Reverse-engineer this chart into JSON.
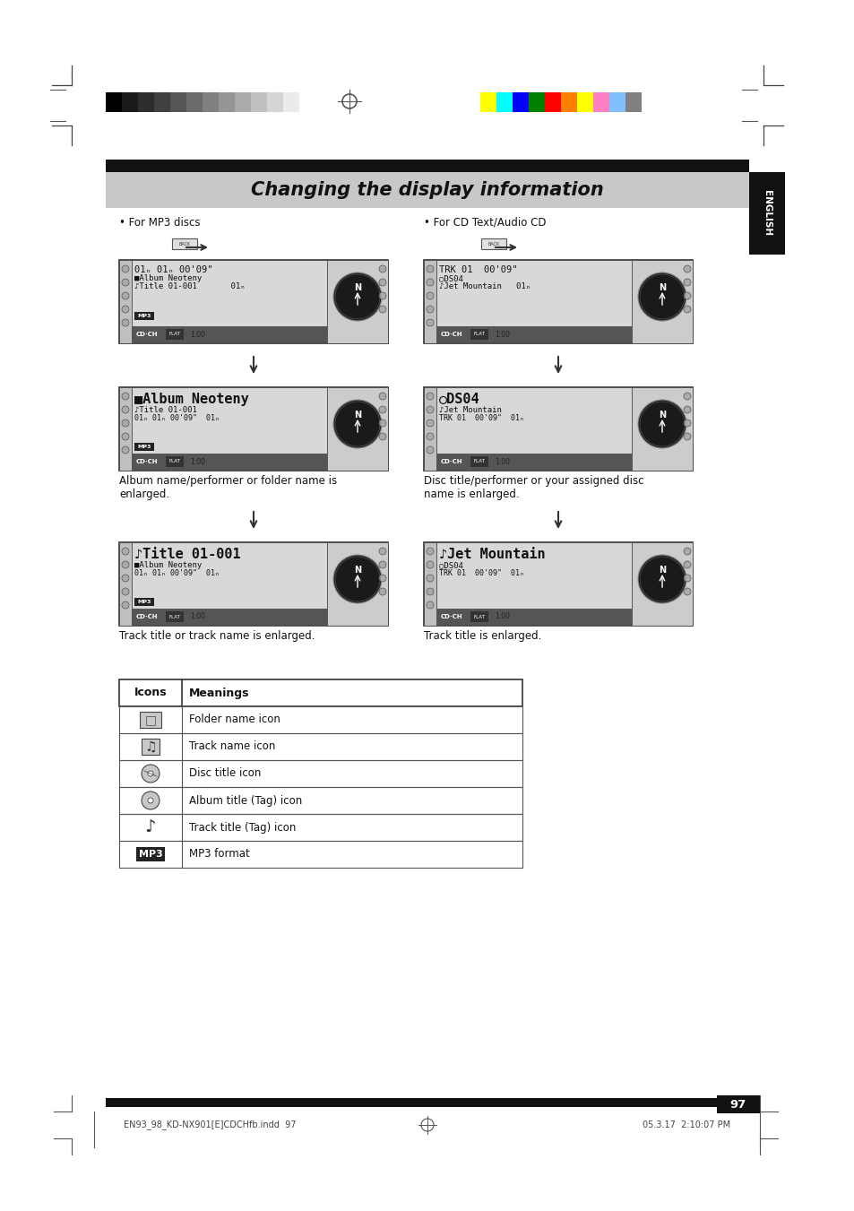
{
  "title": "Changing the display information",
  "page_number": "97",
  "tab_text": "ENGLISH",
  "section_left": "• For MP3 discs",
  "section_right": "• For CD Text/Audio CD",
  "caption_left_1": "Album name/performer or folder name is\nenlarged.",
  "caption_left_2": "Track title or track name is enlarged.",
  "caption_right_1": "Disc title/performer or your assigned disc\nname is enlarged.",
  "caption_right_2": "Track title is enlarged.",
  "footer_left": "EN93_98_KD-NX901[E]CDCHfb.indd  97",
  "footer_right": "05.3.17  2:10:07 PM",
  "table_headers": [
    "Icons",
    "Meanings"
  ],
  "table_rows": [
    [
      "folder_icon",
      "Folder name icon"
    ],
    [
      "track_icon",
      "Track name icon"
    ],
    [
      "disc_icon",
      "Disc title icon"
    ],
    [
      "album_tag_icon",
      "Album title (Tag) icon"
    ],
    [
      "track_tag_icon",
      "Track title (Tag) icon"
    ],
    [
      "mp3_icon",
      "MP3 format"
    ]
  ],
  "colors_left": [
    "#000000",
    "#1a1a1a",
    "#2d2d2d",
    "#404040",
    "#555555",
    "#6a6a6a",
    "#808080",
    "#959595",
    "#aaaaaa",
    "#c0c0c0",
    "#d5d5d5",
    "#ebebeb"
  ],
  "colors_right": [
    "#ffff00",
    "#00ffff",
    "#0000ff",
    "#008000",
    "#ff0000",
    "#ff8000",
    "#ffff00",
    "#ff80c0",
    "#80c0ff",
    "#808080"
  ],
  "bg_color": "#ffffff",
  "title_bg": "#c8c8c8",
  "header_bar_color": "#111111",
  "tab_bg": "#111111",
  "tab_text_color": "#ffffff"
}
